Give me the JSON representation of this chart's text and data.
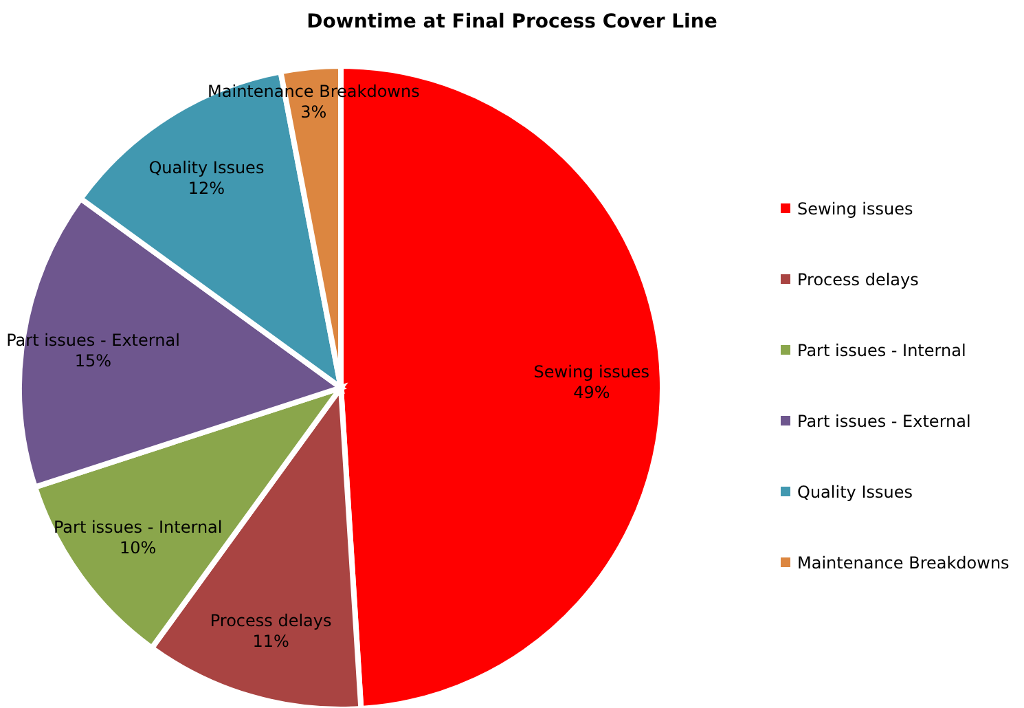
{
  "chart_data": {
    "type": "pie",
    "title": "Downtime at Final Process Cover Line",
    "categories": [
      "Sewing issues",
      "Process delays",
      "Part issues - Internal",
      "Part issues - External",
      "Quality Issues",
      "Maintenance Breakdowns"
    ],
    "values": [
      49,
      11,
      10,
      15,
      12,
      3
    ],
    "colors": [
      "#ff0000",
      "#a94442",
      "#8aa64b",
      "#6e568e",
      "#4198b0",
      "#dc8640"
    ],
    "value_labels": [
      "49%",
      "11%",
      "10%",
      "15%",
      "12%",
      "3%"
    ],
    "legend": "right"
  }
}
